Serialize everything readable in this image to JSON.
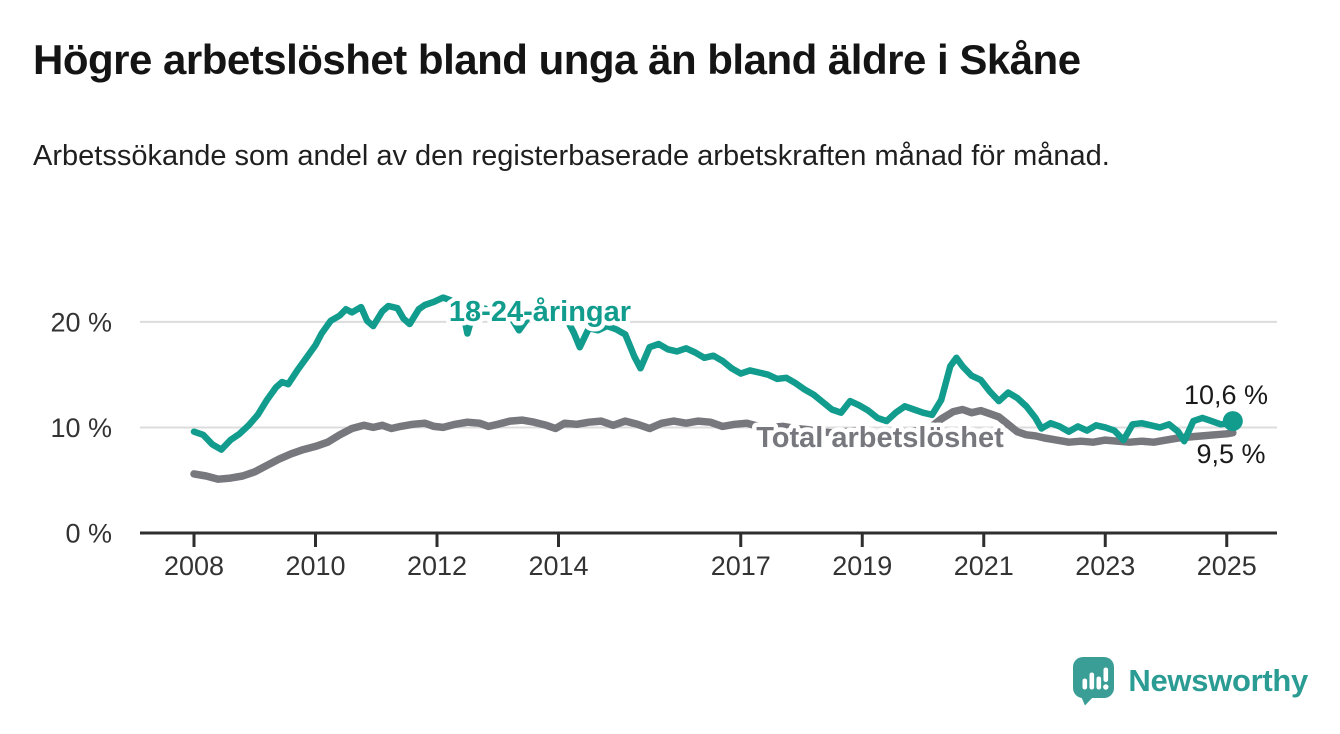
{
  "header": {
    "title": "Högre arbetslöshet bland unga än bland äldre i Skåne",
    "subtitle": "Arbetssökande som andel av den registerbaserade arbetskraften månad för månad."
  },
  "footer": {
    "brand": "Newsworthy"
  },
  "colors": {
    "youth": "#129c8d",
    "total": "#77777e",
    "grid": "#dcdcdc",
    "axis": "#2e2e2e",
    "tick_text": "#333333",
    "annotation_text": "#1a1a1a",
    "brand_icon": "#3a9e97",
    "brand_text": "#2b9c94",
    "background": "#ffffff"
  },
  "chart_data": {
    "type": "line",
    "title": "Högre arbetslöshet bland unga än bland äldre i Skåne",
    "subtitle": "Arbetssökande som andel av den registerbaserade arbetskraften månad för månad.",
    "unit": "%",
    "grid": "horizontal-only",
    "legend_position": "inline-labels",
    "x_axis": {
      "range": [
        2007.1,
        2025.8
      ],
      "ticks": [
        2008,
        2010,
        2012,
        2014,
        2017,
        2019,
        2021,
        2023,
        2025
      ]
    },
    "y_axis": {
      "range": [
        0,
        24
      ],
      "ticks": [
        {
          "value": 0,
          "label": "0 %"
        },
        {
          "value": 10,
          "label": "10 %"
        },
        {
          "value": 20,
          "label": "20 %"
        }
      ]
    },
    "series": [
      {
        "name": "Total arbetslöshet",
        "color": "#77777e",
        "end_label": "9,5 %",
        "end_value": 9.5,
        "end_dot": false,
        "points": [
          [
            2008.0,
            5.6
          ],
          [
            2008.2,
            5.4
          ],
          [
            2008.4,
            5.1
          ],
          [
            2008.6,
            5.2
          ],
          [
            2008.8,
            5.4
          ],
          [
            2009.0,
            5.8
          ],
          [
            2009.2,
            6.4
          ],
          [
            2009.4,
            7.0
          ],
          [
            2009.6,
            7.5
          ],
          [
            2009.8,
            7.9
          ],
          [
            2010.0,
            8.2
          ],
          [
            2010.2,
            8.6
          ],
          [
            2010.4,
            9.3
          ],
          [
            2010.6,
            9.9
          ],
          [
            2010.8,
            10.2
          ],
          [
            2010.95,
            10.0
          ],
          [
            2011.1,
            10.2
          ],
          [
            2011.25,
            9.9
          ],
          [
            2011.4,
            10.1
          ],
          [
            2011.6,
            10.3
          ],
          [
            2011.8,
            10.4
          ],
          [
            2011.95,
            10.1
          ],
          [
            2012.1,
            10.0
          ],
          [
            2012.3,
            10.3
          ],
          [
            2012.5,
            10.5
          ],
          [
            2012.7,
            10.4
          ],
          [
            2012.85,
            10.1
          ],
          [
            2013.0,
            10.3
          ],
          [
            2013.2,
            10.6
          ],
          [
            2013.4,
            10.7
          ],
          [
            2013.6,
            10.5
          ],
          [
            2013.8,
            10.2
          ],
          [
            2013.95,
            9.9
          ],
          [
            2014.1,
            10.4
          ],
          [
            2014.3,
            10.3
          ],
          [
            2014.5,
            10.5
          ],
          [
            2014.7,
            10.6
          ],
          [
            2014.9,
            10.2
          ],
          [
            2015.1,
            10.6
          ],
          [
            2015.3,
            10.3
          ],
          [
            2015.5,
            9.9
          ],
          [
            2015.7,
            10.4
          ],
          [
            2015.9,
            10.6
          ],
          [
            2016.1,
            10.4
          ],
          [
            2016.3,
            10.6
          ],
          [
            2016.5,
            10.5
          ],
          [
            2016.7,
            10.1
          ],
          [
            2016.9,
            10.3
          ],
          [
            2017.1,
            10.4
          ],
          [
            2017.3,
            10.1
          ],
          [
            2017.5,
            10.0
          ],
          [
            2017.7,
            10.1
          ],
          [
            2017.9,
            9.9
          ],
          [
            2018.1,
            9.8
          ],
          [
            2018.3,
            9.6
          ],
          [
            2018.5,
            9.5
          ],
          [
            2018.7,
            9.6
          ],
          [
            2018.9,
            9.7
          ],
          [
            2019.1,
            9.5
          ],
          [
            2019.3,
            9.4
          ],
          [
            2019.5,
            9.5
          ],
          [
            2019.7,
            9.6
          ],
          [
            2019.9,
            9.7
          ],
          [
            2020.1,
            9.9
          ],
          [
            2020.3,
            10.8
          ],
          [
            2020.5,
            11.5
          ],
          [
            2020.65,
            11.7
          ],
          [
            2020.8,
            11.4
          ],
          [
            2020.95,
            11.6
          ],
          [
            2021.1,
            11.3
          ],
          [
            2021.25,
            11.0
          ],
          [
            2021.4,
            10.3
          ],
          [
            2021.55,
            9.6
          ],
          [
            2021.7,
            9.3
          ],
          [
            2021.85,
            9.2
          ],
          [
            2022.0,
            9.0
          ],
          [
            2022.2,
            8.8
          ],
          [
            2022.4,
            8.6
          ],
          [
            2022.6,
            8.7
          ],
          [
            2022.8,
            8.6
          ],
          [
            2023.0,
            8.8
          ],
          [
            2023.2,
            8.7
          ],
          [
            2023.4,
            8.6
          ],
          [
            2023.6,
            8.7
          ],
          [
            2023.8,
            8.6
          ],
          [
            2024.0,
            8.8
          ],
          [
            2024.2,
            9.0
          ],
          [
            2024.4,
            9.1
          ],
          [
            2024.6,
            9.2
          ],
          [
            2024.8,
            9.3
          ],
          [
            2025.0,
            9.4
          ],
          [
            2025.1,
            9.5
          ]
        ]
      },
      {
        "name": "18-24-åringar",
        "color": "#129c8d",
        "end_label": "10,6 %",
        "end_value": 10.6,
        "end_dot": true,
        "points": [
          [
            2008.0,
            9.6
          ],
          [
            2008.15,
            9.3
          ],
          [
            2008.3,
            8.4
          ],
          [
            2008.45,
            7.9
          ],
          [
            2008.6,
            8.8
          ],
          [
            2008.75,
            9.4
          ],
          [
            2008.9,
            10.2
          ],
          [
            2009.05,
            11.2
          ],
          [
            2009.2,
            12.6
          ],
          [
            2009.35,
            13.8
          ],
          [
            2009.45,
            14.3
          ],
          [
            2009.55,
            14.1
          ],
          [
            2009.7,
            15.4
          ],
          [
            2009.85,
            16.6
          ],
          [
            2010.0,
            17.8
          ],
          [
            2010.1,
            18.9
          ],
          [
            2010.25,
            20.1
          ],
          [
            2010.4,
            20.6
          ],
          [
            2010.5,
            21.2
          ],
          [
            2010.6,
            20.9
          ],
          [
            2010.75,
            21.4
          ],
          [
            2010.85,
            20.1
          ],
          [
            2010.95,
            19.6
          ],
          [
            2011.1,
            21.0
          ],
          [
            2011.2,
            21.5
          ],
          [
            2011.35,
            21.3
          ],
          [
            2011.45,
            20.3
          ],
          [
            2011.55,
            19.8
          ],
          [
            2011.7,
            21.2
          ],
          [
            2011.8,
            21.6
          ],
          [
            2011.95,
            21.9
          ],
          [
            2012.1,
            22.3
          ],
          [
            2012.25,
            22.0
          ],
          [
            2012.4,
            21.7
          ],
          [
            2012.5,
            18.9
          ],
          [
            2012.6,
            20.9
          ],
          [
            2012.75,
            21.3
          ],
          [
            2012.9,
            21.1
          ],
          [
            2013.05,
            20.9
          ],
          [
            2013.2,
            20.6
          ],
          [
            2013.35,
            19.2
          ],
          [
            2013.5,
            20.4
          ],
          [
            2013.65,
            20.8
          ],
          [
            2013.8,
            20.5
          ],
          [
            2013.95,
            20.2
          ],
          [
            2014.1,
            20.6
          ],
          [
            2014.25,
            19.0
          ],
          [
            2014.35,
            17.6
          ],
          [
            2014.5,
            19.4
          ],
          [
            2014.65,
            19.2
          ],
          [
            2014.8,
            19.6
          ],
          [
            2014.95,
            19.3
          ],
          [
            2015.1,
            18.8
          ],
          [
            2015.25,
            16.7
          ],
          [
            2015.35,
            15.6
          ],
          [
            2015.5,
            17.6
          ],
          [
            2015.65,
            17.9
          ],
          [
            2015.8,
            17.4
          ],
          [
            2015.95,
            17.2
          ],
          [
            2016.1,
            17.5
          ],
          [
            2016.25,
            17.1
          ],
          [
            2016.4,
            16.6
          ],
          [
            2016.55,
            16.8
          ],
          [
            2016.7,
            16.3
          ],
          [
            2016.85,
            15.6
          ],
          [
            2017.0,
            15.1
          ],
          [
            2017.15,
            15.4
          ],
          [
            2017.3,
            15.2
          ],
          [
            2017.45,
            15.0
          ],
          [
            2017.6,
            14.6
          ],
          [
            2017.75,
            14.7
          ],
          [
            2017.9,
            14.2
          ],
          [
            2018.05,
            13.6
          ],
          [
            2018.2,
            13.1
          ],
          [
            2018.35,
            12.4
          ],
          [
            2018.5,
            11.7
          ],
          [
            2018.65,
            11.4
          ],
          [
            2018.8,
            12.5
          ],
          [
            2018.95,
            12.1
          ],
          [
            2019.1,
            11.6
          ],
          [
            2019.25,
            10.9
          ],
          [
            2019.4,
            10.6
          ],
          [
            2019.55,
            11.4
          ],
          [
            2019.7,
            12.0
          ],
          [
            2019.85,
            11.7
          ],
          [
            2020.0,
            11.4
          ],
          [
            2020.15,
            11.2
          ],
          [
            2020.3,
            12.6
          ],
          [
            2020.45,
            15.8
          ],
          [
            2020.55,
            16.6
          ],
          [
            2020.65,
            15.8
          ],
          [
            2020.8,
            14.9
          ],
          [
            2020.95,
            14.5
          ],
          [
            2021.1,
            13.4
          ],
          [
            2021.25,
            12.5
          ],
          [
            2021.4,
            13.3
          ],
          [
            2021.55,
            12.8
          ],
          [
            2021.7,
            12.0
          ],
          [
            2021.85,
            10.9
          ],
          [
            2021.95,
            9.9
          ],
          [
            2022.1,
            10.4
          ],
          [
            2022.25,
            10.1
          ],
          [
            2022.4,
            9.6
          ],
          [
            2022.55,
            10.1
          ],
          [
            2022.7,
            9.7
          ],
          [
            2022.85,
            10.2
          ],
          [
            2023.0,
            10.0
          ],
          [
            2023.15,
            9.7
          ],
          [
            2023.3,
            8.8
          ],
          [
            2023.45,
            10.3
          ],
          [
            2023.6,
            10.4
          ],
          [
            2023.75,
            10.2
          ],
          [
            2023.9,
            10.0
          ],
          [
            2024.05,
            10.3
          ],
          [
            2024.2,
            9.6
          ],
          [
            2024.3,
            8.7
          ],
          [
            2024.45,
            10.6
          ],
          [
            2024.6,
            10.9
          ],
          [
            2024.75,
            10.6
          ],
          [
            2024.9,
            10.3
          ],
          [
            2025.05,
            10.4
          ],
          [
            2025.1,
            10.6
          ]
        ]
      }
    ]
  }
}
